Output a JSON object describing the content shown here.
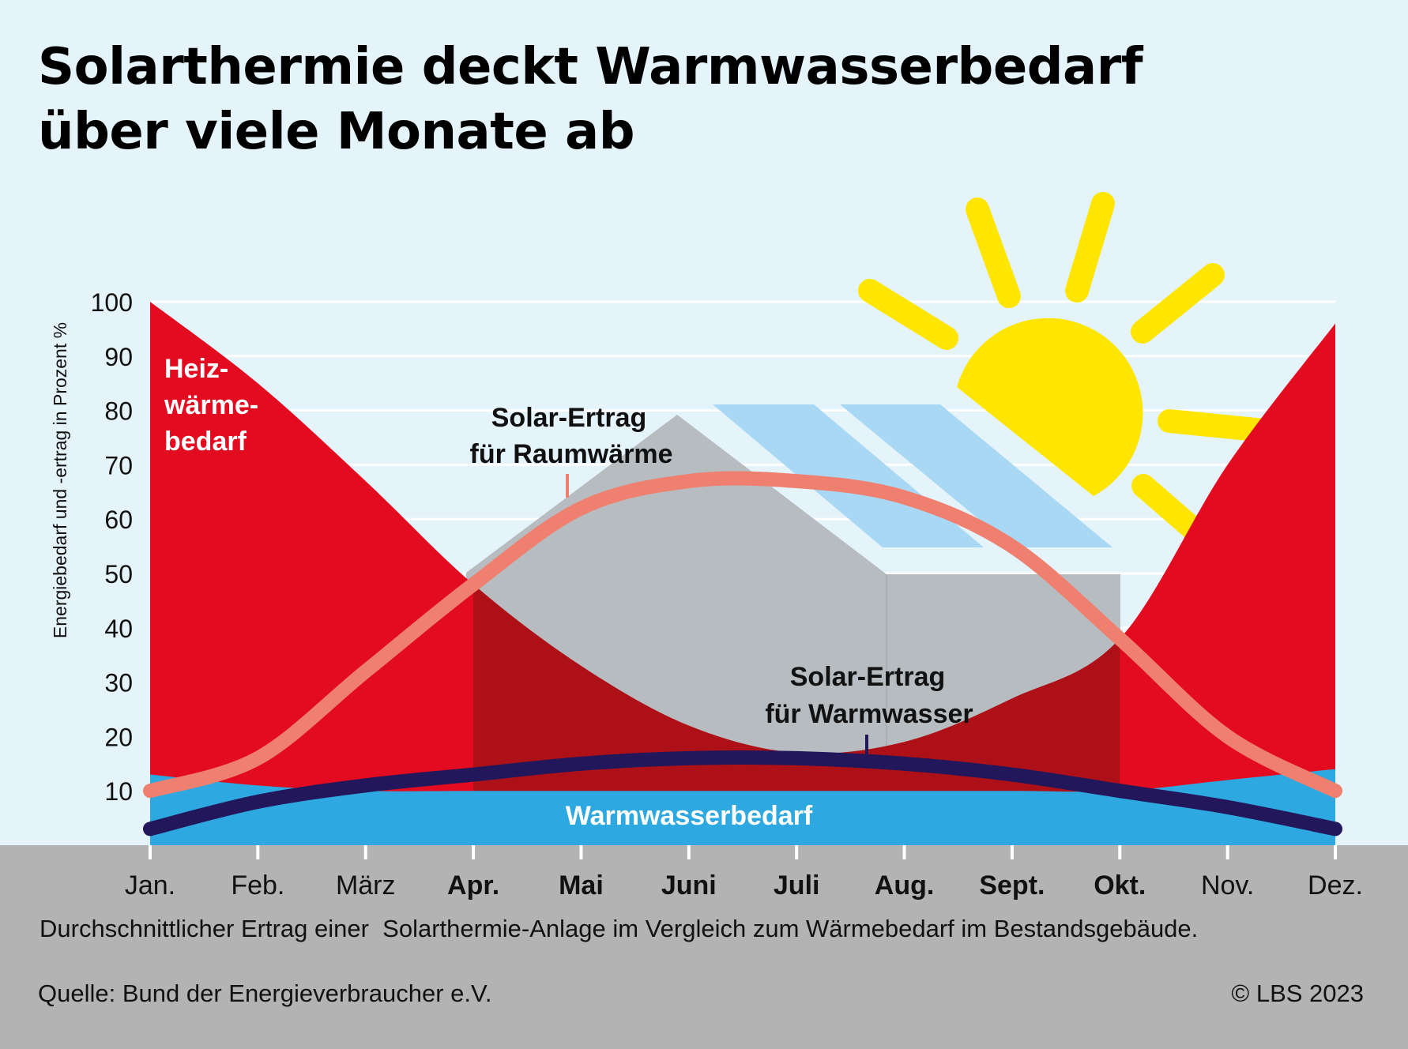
{
  "title_lines": [
    "Solarthermie deckt Warmwasserbedarf",
    "über viele Monate ab"
  ],
  "colors": {
    "background": "#e5f3fb",
    "heat_demand": "#e30b20",
    "heat_demand_covered": "#ad1117",
    "hot_water_demand": "#2ea8e0",
    "solar_space_heat": "#ef8070",
    "solar_hot_water": "#22175a",
    "house": "#b6bcc0",
    "solar_panel": "#a8d8f4",
    "sun": "#ffe600",
    "footer": "#b3b3b3"
  },
  "chart_data": {
    "type": "area",
    "categories": [
      "Jan.",
      "Feb.",
      "März",
      "Apr.",
      "Mai",
      "Juni",
      "Juli",
      "Aug.",
      "Sept.",
      "Okt.",
      "Nov.",
      "Dez."
    ],
    "bold_categories": [
      "Apr.",
      "Mai",
      "Juni",
      "Juli",
      "Aug.",
      "Sept.",
      "Okt."
    ],
    "ylabel": "Energiebedarf und -ertrag in Prozent %",
    "yticks": [
      10,
      20,
      30,
      40,
      50,
      60,
      70,
      80,
      90,
      100
    ],
    "ylim": [
      0,
      100
    ],
    "grid": true,
    "series": [
      {
        "key": "heat",
        "name": "Heiz-wärme-bedarf",
        "values": [
          100,
          85,
          67,
          48,
          33,
          22,
          17,
          19,
          27,
          38,
          70,
          96
        ]
      },
      {
        "key": "hotwater",
        "name": "Warmwasserbedarf",
        "values": [
          13,
          11,
          10,
          10,
          10,
          10,
          10,
          10,
          10,
          10,
          12,
          14
        ]
      },
      {
        "key": "solar_space",
        "name": "Solar-Ertrag für Raumwärme",
        "values": [
          10,
          16,
          32,
          48,
          62,
          67,
          67,
          64,
          55,
          38,
          20,
          10
        ]
      },
      {
        "key": "solar_water",
        "name": "Solar-Ertrag für Warmwasser",
        "values": [
          3,
          8,
          11,
          13,
          15,
          16,
          16,
          15,
          13,
          10,
          7,
          3
        ]
      }
    ],
    "labels": {
      "heat": [
        "Heiz-",
        "wärme-",
        "bedarf"
      ],
      "solar_space": [
        "Solar-Ertrag",
        "für Raumwärme"
      ],
      "solar_water": [
        "Solar-Ertrag",
        "für Warmwasser"
      ],
      "hotwater": "Warmwasserbedarf"
    }
  },
  "caption": "Durchschnittlicher Ertrag einer  Solarthermie-Anlage im Vergleich zum Wärmebedarf im Bestandsgebäude.",
  "source": "Quelle: Bund der Energieverbraucher e.V.",
  "copyright": "© LBS 2023"
}
